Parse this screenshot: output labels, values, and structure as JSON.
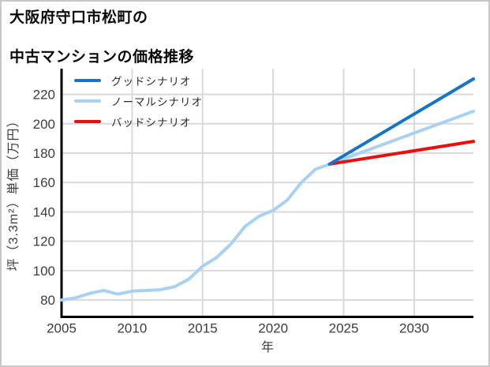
{
  "title": {
    "line1": "大阪府守口市松町の",
    "line2": "中古マンションの価格推移"
  },
  "chart_data": {
    "type": "line",
    "title": "大阪府守口市松町の中古マンションの価格推移",
    "xlabel": "年",
    "ylabel": "坪（3.3m²）単価（万円）",
    "xlim": [
      2005,
      2034.2
    ],
    "ylim": [
      68.5,
      237.5
    ],
    "xticks": [
      2005,
      2010,
      2015,
      2020,
      2025,
      2030
    ],
    "yticks": [
      80,
      100,
      120,
      140,
      160,
      180,
      200,
      220
    ],
    "grid": true,
    "legend_position": "top-left",
    "series": [
      {
        "name": "グッドシナリオ",
        "color": "#1576c8",
        "x": [
          2024,
          2034.2
        ],
        "values": [
          172.5,
          230.5
        ]
      },
      {
        "name": "ノーマルシナリオ",
        "color": "#a8d1f2",
        "x": [
          2005,
          2006,
          2007,
          2008,
          2009,
          2010,
          2011,
          2012,
          2013,
          2014,
          2015,
          2016,
          2017,
          2018,
          2019,
          2020,
          2021,
          2022,
          2023,
          2024,
          2034.2
        ],
        "values": [
          80,
          81.5,
          84.5,
          86.5,
          84,
          86,
          86.5,
          87,
          89,
          94,
          103,
          109,
          118,
          130,
          137,
          141,
          148,
          160,
          169,
          172.5,
          208.5
        ]
      },
      {
        "name": "バッドシナリオ",
        "color": "#ec0d0d",
        "x": [
          2024,
          2034.2
        ],
        "values": [
          172.5,
          188
        ]
      }
    ],
    "colors": {
      "grid": "#d9d9d9",
      "spine": "#000000",
      "tick_text": "#3d3d3d",
      "frame_border": "#c8c8c8"
    }
  }
}
